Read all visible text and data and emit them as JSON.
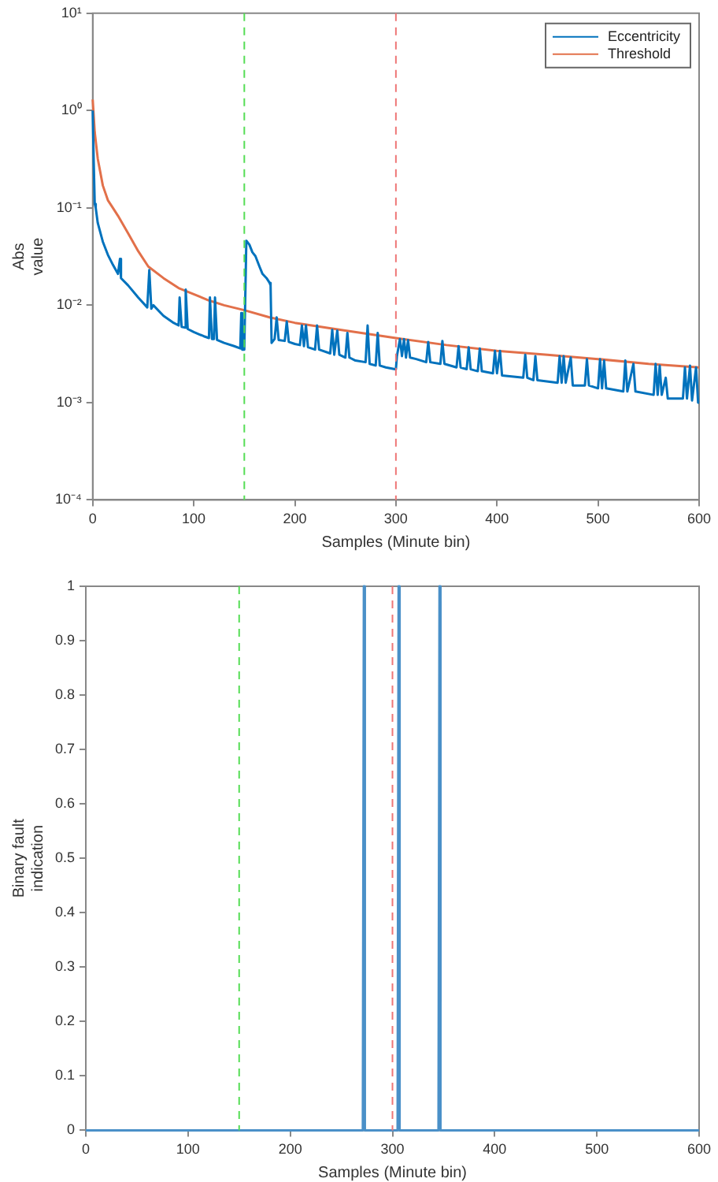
{
  "chart_data": [
    {
      "type": "line",
      "xlabel": "Samples (Minute bin)",
      "ylabel": "Abs value",
      "log": "y",
      "legend": "top right",
      "grid": false,
      "xlim": [
        0,
        600
      ],
      "xticks": [
        0,
        100,
        200,
        300,
        400,
        500,
        600
      ],
      "ylim": [
        0.0001,
        10
      ],
      "yticks": [
        {
          "value": 0.0001,
          "label": "10⁻⁴"
        },
        {
          "value": 0.001,
          "label": "10⁻³"
        },
        {
          "value": 0.01,
          "label": "10⁻²"
        },
        {
          "value": 0.1,
          "label": "10⁻¹"
        },
        {
          "value": 1,
          "label": "10⁰"
        },
        {
          "value": 10,
          "label": "10¹"
        }
      ],
      "ref_lines": [
        {
          "axis": "x",
          "value": 150,
          "label": null,
          "color": "#55dd55",
          "line_style": "dashed"
        },
        {
          "axis": "x",
          "value": 300,
          "label": null,
          "color": "#ee7777",
          "line_style": "dashed"
        }
      ],
      "series": [
        {
          "name": "Eccentricity",
          "color": "#0072bd",
          "x": [
            0,
            1,
            2,
            3,
            5,
            10,
            15,
            20,
            25,
            27,
            28,
            35,
            45,
            54,
            56,
            58,
            60,
            70,
            80,
            85,
            86,
            88,
            91,
            92,
            94,
            100,
            110,
            115,
            116,
            118,
            120,
            121,
            123,
            130,
            140,
            146,
            147,
            148,
            150,
            152,
            155,
            158,
            161,
            165,
            168,
            172,
            175,
            176,
            177,
            180,
            182,
            184,
            190,
            192,
            194,
            200,
            205,
            207,
            209,
            211,
            213,
            220,
            222,
            224,
            235,
            237,
            239,
            242,
            244,
            250,
            252,
            254,
            260,
            270,
            272,
            274,
            280,
            282,
            284,
            290,
            299,
            300,
            301,
            304,
            306,
            308,
            310,
            312,
            314,
            320,
            330,
            332,
            334,
            344,
            346,
            348,
            360,
            362,
            364,
            370,
            372,
            374,
            381,
            383,
            385,
            396,
            398,
            400,
            403,
            405,
            426,
            428,
            430,
            436,
            438,
            440,
            460,
            462,
            464,
            466,
            468,
            473,
            475,
            487,
            489,
            491,
            500,
            502,
            504,
            506,
            508,
            525,
            527,
            529,
            535,
            537,
            555,
            557,
            559,
            561,
            563,
            567,
            569,
            584,
            586,
            588,
            591,
            593,
            597,
            599,
            600
          ],
          "values": [
            1.0,
            0.3,
            0.11,
            0.1,
            0.07,
            0.045,
            0.033,
            0.026,
            0.021,
            0.03,
            0.019,
            0.016,
            0.012,
            0.0095,
            0.023,
            0.0092,
            0.01,
            0.0078,
            0.0066,
            0.0062,
            0.012,
            0.006,
            0.0059,
            0.0145,
            0.0057,
            0.0053,
            0.0048,
            0.0046,
            0.012,
            0.0045,
            0.0045,
            0.012,
            0.0044,
            0.0041,
            0.0038,
            0.0036,
            0.0083,
            0.0035,
            0.0035,
            0.046,
            0.042,
            0.035,
            0.032,
            0.025,
            0.021,
            0.019,
            0.017,
            0.016,
            0.0041,
            0.0045,
            0.0075,
            0.0044,
            0.0043,
            0.0068,
            0.0042,
            0.004,
            0.0039,
            0.0062,
            0.0038,
            0.0062,
            0.0037,
            0.0035,
            0.0062,
            0.0035,
            0.0032,
            0.0056,
            0.0031,
            0.0055,
            0.0031,
            0.0029,
            0.0052,
            0.0029,
            0.0027,
            0.0026,
            0.0062,
            0.0025,
            0.0024,
            0.0052,
            0.0024,
            0.0023,
            0.0022,
            0.0022,
            0.003,
            0.0045,
            0.003,
            0.0045,
            0.0029,
            0.0044,
            0.0029,
            0.0028,
            0.0026,
            0.0042,
            0.0026,
            0.0025,
            0.0043,
            0.0025,
            0.0023,
            0.0038,
            0.0023,
            0.0022,
            0.0037,
            0.0022,
            0.0021,
            0.0036,
            0.0021,
            0.002,
            0.0034,
            0.002,
            0.0034,
            0.0019,
            0.0018,
            0.0031,
            0.0018,
            0.0017,
            0.003,
            0.0017,
            0.0016,
            0.003,
            0.0016,
            0.003,
            0.0016,
            0.0029,
            0.0015,
            0.0015,
            0.0028,
            0.0015,
            0.0014,
            0.0028,
            0.0014,
            0.0027,
            0.0014,
            0.0013,
            0.0027,
            0.0013,
            0.0025,
            0.0013,
            0.0012,
            0.0025,
            0.0012,
            0.0024,
            0.0012,
            0.0018,
            0.0011,
            0.0011,
            0.0023,
            0.0011,
            0.0024,
            0.00105,
            0.0023,
            0.001,
            0.001
          ]
        },
        {
          "name": "Threshold",
          "color": "#e2704a",
          "x": [
            0,
            2,
            5,
            10,
            15,
            20,
            25,
            35,
            45,
            55,
            70,
            85,
            100,
            115,
            130,
            150,
            175,
            200,
            250,
            300,
            350,
            400,
            450,
            500,
            550,
            600
          ],
          "values": [
            1.3,
            0.6,
            0.32,
            0.17,
            0.12,
            0.1,
            0.083,
            0.055,
            0.036,
            0.025,
            0.019,
            0.015,
            0.013,
            0.0112,
            0.01,
            0.0089,
            0.0075,
            0.0066,
            0.0055,
            0.0046,
            0.0039,
            0.0034,
            0.0031,
            0.0028,
            0.0025,
            0.0023
          ]
        }
      ]
    },
    {
      "type": "line",
      "xlabel": "Samples (Minute bin)",
      "ylabel": "Binary fault\nindication",
      "grid": false,
      "legend": false,
      "xlim": [
        0,
        600
      ],
      "xticks": [
        0,
        100,
        200,
        300,
        400,
        500,
        600
      ],
      "ylim": [
        0,
        1
      ],
      "yticks": [
        0,
        0.1,
        0.2,
        0.3,
        0.4,
        0.5,
        0.6,
        0.7,
        0.8,
        0.9,
        1
      ],
      "ref_lines": [
        {
          "axis": "x",
          "value": 150,
          "label": null,
          "color": "#55dd55",
          "line_style": "dashed"
        },
        {
          "axis": "x",
          "value": 300,
          "label": null,
          "color": "#ee7777",
          "line_style": "dashed"
        }
      ],
      "series": [
        {
          "color": "#4a90c8",
          "x": [
            0,
            271,
            272,
            273,
            305,
            306,
            307,
            345,
            346,
            347,
            600
          ],
          "values": [
            0,
            0,
            1,
            0,
            0,
            1,
            0,
            0,
            1,
            0,
            0
          ]
        }
      ]
    }
  ]
}
